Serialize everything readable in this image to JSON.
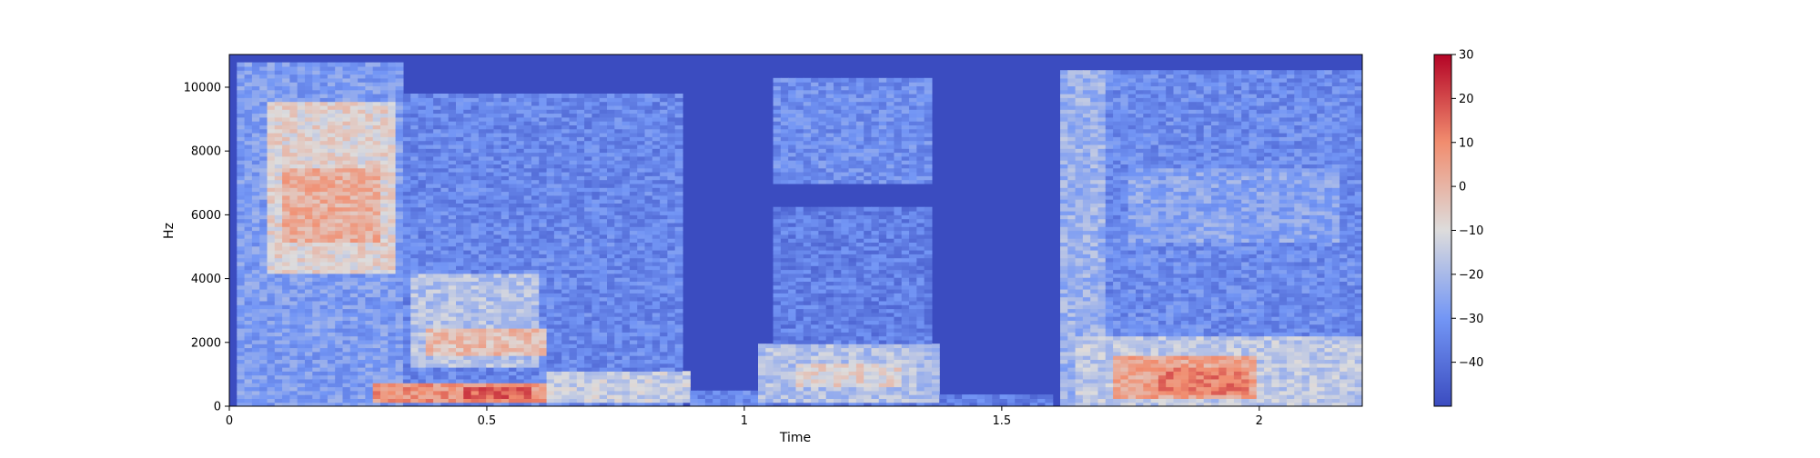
{
  "chart_data": {
    "type": "heatmap",
    "title": "",
    "xlabel": "Time",
    "ylabel": "Hz",
    "xlim": [
      0,
      2.2
    ],
    "ylim": [
      0,
      11025
    ],
    "xticks": [
      {
        "value": 0,
        "label": "0"
      },
      {
        "value": 0.5,
        "label": "0.5"
      },
      {
        "value": 1,
        "label": "1"
      },
      {
        "value": 1.5,
        "label": "1.5"
      },
      {
        "value": 2,
        "label": "2"
      }
    ],
    "yticks": [
      {
        "value": 0,
        "label": "0"
      },
      {
        "value": 2000,
        "label": "2000"
      },
      {
        "value": 4000,
        "label": "4000"
      },
      {
        "value": 6000,
        "label": "6000"
      },
      {
        "value": 8000,
        "label": "8000"
      },
      {
        "value": 10000,
        "label": "10000"
      }
    ],
    "colorbar": {
      "colormap": "coolwarm",
      "range": [
        -50,
        30
      ],
      "ticks": [
        {
          "value": 30,
          "label": "30"
        },
        {
          "value": 20,
          "label": "20"
        },
        {
          "value": 10,
          "label": "10"
        },
        {
          "value": 0,
          "label": "0"
        },
        {
          "value": -10,
          "label": "−10"
        },
        {
          "value": -20,
          "label": "−20"
        },
        {
          "value": -30,
          "label": "−30"
        },
        {
          "value": -40,
          "label": "−40"
        }
      ]
    },
    "floor_db": -50,
    "regions": [
      {
        "t0": 0.02,
        "t1": 0.33,
        "f0": 0,
        "f1": 10800,
        "db": -28
      },
      {
        "t0": 0.07,
        "t1": 0.32,
        "f0": 4200,
        "f1": 9500,
        "db": -8
      },
      {
        "t0": 0.1,
        "t1": 0.3,
        "f0": 5200,
        "f1": 7500,
        "db": 2
      },
      {
        "t0": 0.33,
        "t1": 0.88,
        "f0": 0,
        "f1": 9800,
        "db": -34
      },
      {
        "t0": 0.35,
        "t1": 0.6,
        "f0": 1200,
        "f1": 4200,
        "db": -18
      },
      {
        "t0": 0.38,
        "t1": 0.62,
        "f0": 1600,
        "f1": 2400,
        "db": -2
      },
      {
        "t0": 0.28,
        "t1": 0.62,
        "f0": 150,
        "f1": 700,
        "db": 8
      },
      {
        "t0": 0.45,
        "t1": 0.58,
        "f0": 200,
        "f1": 600,
        "db": 16
      },
      {
        "t0": 0.62,
        "t1": 0.9,
        "f0": 100,
        "f1": 1100,
        "db": -14
      },
      {
        "t0": 0.9,
        "t1": 1.05,
        "f0": 0,
        "f1": 500,
        "db": -33
      },
      {
        "t0": 1.05,
        "t1": 1.37,
        "f0": 7000,
        "f1": 10300,
        "db": -32
      },
      {
        "t0": 1.05,
        "t1": 1.37,
        "f0": 0,
        "f1": 6200,
        "db": -36
      },
      {
        "t0": 1.02,
        "t1": 1.38,
        "f0": 100,
        "f1": 1900,
        "db": -18
      },
      {
        "t0": 1.1,
        "t1": 1.3,
        "f0": 600,
        "f1": 1400,
        "db": -8
      },
      {
        "t0": 1.37,
        "t1": 1.6,
        "f0": 0,
        "f1": 350,
        "db": -36
      },
      {
        "t0": 1.62,
        "t1": 2.2,
        "f0": 0,
        "f1": 10500,
        "db": -33
      },
      {
        "t0": 1.62,
        "t1": 1.7,
        "f0": 0,
        "f1": 10500,
        "db": -22
      },
      {
        "t0": 1.65,
        "t1": 2.2,
        "f0": 0,
        "f1": 2200,
        "db": -16
      },
      {
        "t0": 1.72,
        "t1": 2.0,
        "f0": 200,
        "f1": 1600,
        "db": 4
      },
      {
        "t0": 1.8,
        "t1": 1.98,
        "f0": 400,
        "f1": 1200,
        "db": 12
      },
      {
        "t0": 1.75,
        "t1": 2.15,
        "f0": 5200,
        "f1": 7500,
        "db": -26
      }
    ]
  }
}
